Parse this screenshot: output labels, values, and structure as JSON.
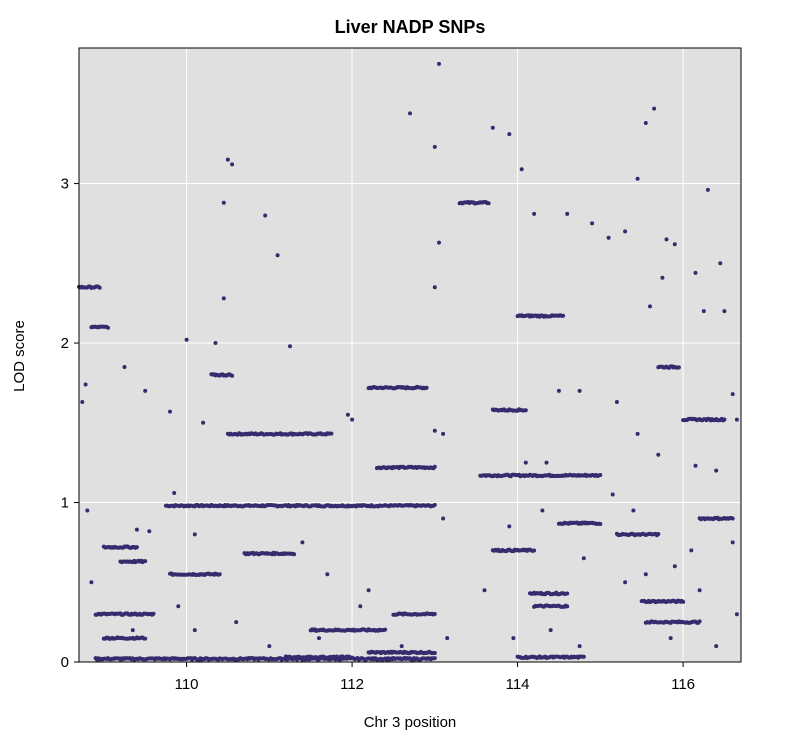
{
  "chart_data": {
    "type": "scatter",
    "title": "Liver NADP SNPs",
    "xlabel": "Chr 3 position",
    "ylabel": "LOD score",
    "xlim": [
      108.7,
      116.7
    ],
    "ylim": [
      0,
      3.85
    ],
    "xticks": [
      110,
      112,
      114,
      116
    ],
    "yticks": [
      0,
      1,
      2,
      3
    ],
    "grid": true,
    "background_color": "#e0e0e0",
    "grid_color": "#ffffff",
    "point_color": "#342c6e",
    "legend": "none",
    "series": [
      {
        "values": {
          "segments": [
            [
              109.75,
              113.0,
              0.98
            ],
            [
              110.5,
              111.75,
              1.43
            ],
            [
              112.2,
              112.9,
              1.72
            ],
            [
              113.55,
              115.0,
              1.17
            ],
            [
              112.3,
              113.0,
              1.22
            ],
            [
              114.15,
              114.6,
              0.43
            ],
            [
              113.3,
              113.65,
              2.88
            ],
            [
              108.7,
              108.95,
              2.35
            ],
            [
              108.85,
              109.05,
              2.1
            ],
            [
              109.8,
              110.4,
              0.55
            ],
            [
              108.9,
              109.6,
              0.3
            ],
            [
              109.0,
              109.5,
              0.15
            ],
            [
              108.9,
              113.0,
              0.02
            ],
            [
              111.2,
              112.0,
              0.03
            ],
            [
              112.2,
              113.0,
              0.06
            ],
            [
              114.5,
              115.0,
              0.87
            ],
            [
              115.2,
              115.7,
              0.8
            ],
            [
              114.0,
              114.55,
              2.17
            ],
            [
              110.3,
              110.55,
              1.8
            ],
            [
              113.7,
              114.1,
              1.58
            ],
            [
              115.7,
              115.95,
              1.85
            ],
            [
              116.0,
              116.5,
              1.52
            ],
            [
              115.55,
              116.2,
              0.25
            ],
            [
              111.5,
              112.4,
              0.2
            ],
            [
              112.5,
              113.0,
              0.3
            ],
            [
              109.2,
              109.5,
              0.63
            ],
            [
              109.0,
              109.4,
              0.72
            ],
            [
              110.7,
              111.3,
              0.68
            ],
            [
              113.7,
              114.2,
              0.7
            ],
            [
              114.2,
              114.6,
              0.35
            ],
            [
              115.5,
              116.0,
              0.38
            ],
            [
              116.2,
              116.6,
              0.9
            ],
            [
              114.0,
              114.8,
              0.03
            ]
          ],
          "points": [
            [
              113.05,
              3.75
            ],
            [
              112.7,
              3.44
            ],
            [
              113.0,
              3.23
            ],
            [
              113.7,
              3.35
            ],
            [
              113.9,
              3.31
            ],
            [
              114.05,
              3.09
            ],
            [
              110.5,
              3.15
            ],
            [
              110.55,
              3.12
            ],
            [
              110.45,
              2.88
            ],
            [
              110.95,
              2.8
            ],
            [
              111.1,
              2.55
            ],
            [
              113.05,
              2.63
            ],
            [
              114.2,
              2.81
            ],
            [
              114.6,
              2.81
            ],
            [
              114.9,
              2.75
            ],
            [
              115.1,
              2.66
            ],
            [
              115.3,
              2.7
            ],
            [
              115.45,
              3.03
            ],
            [
              115.55,
              3.38
            ],
            [
              115.65,
              3.47
            ],
            [
              116.3,
              2.96
            ],
            [
              115.8,
              2.65
            ],
            [
              115.9,
              2.62
            ],
            [
              116.15,
              2.44
            ],
            [
              116.45,
              2.5
            ],
            [
              115.6,
              2.23
            ],
            [
              115.75,
              2.41
            ],
            [
              116.25,
              2.2
            ],
            [
              116.5,
              2.2
            ],
            [
              110.45,
              2.28
            ],
            [
              113.0,
              2.35
            ],
            [
              111.25,
              1.98
            ],
            [
              108.78,
              1.74
            ],
            [
              108.74,
              1.63
            ],
            [
              109.25,
              1.85
            ],
            [
              109.5,
              1.7
            ],
            [
              110.0,
              2.02
            ],
            [
              110.35,
              2.0
            ],
            [
              109.8,
              1.57
            ],
            [
              111.95,
              1.55
            ],
            [
              112.0,
              1.52
            ],
            [
              114.5,
              1.7
            ],
            [
              114.75,
              1.7
            ],
            [
              115.2,
              1.63
            ],
            [
              115.45,
              1.43
            ],
            [
              116.65,
              1.52
            ],
            [
              116.6,
              1.68
            ],
            [
              113.0,
              1.45
            ],
            [
              113.1,
              1.43
            ],
            [
              110.2,
              1.5
            ],
            [
              114.1,
              1.25
            ],
            [
              114.35,
              1.25
            ],
            [
              115.7,
              1.3
            ],
            [
              116.15,
              1.23
            ],
            [
              116.4,
              1.2
            ],
            [
              109.4,
              0.83
            ],
            [
              109.55,
              0.82
            ],
            [
              109.85,
              1.06
            ],
            [
              110.1,
              0.8
            ],
            [
              111.4,
              0.75
            ],
            [
              111.7,
              0.55
            ],
            [
              112.2,
              0.45
            ],
            [
              113.1,
              0.9
            ],
            [
              113.9,
              0.85
            ],
            [
              114.3,
              0.95
            ],
            [
              114.8,
              0.65
            ],
            [
              115.15,
              1.05
            ],
            [
              115.4,
              0.95
            ],
            [
              115.9,
              0.6
            ],
            [
              116.2,
              0.45
            ],
            [
              116.6,
              0.75
            ],
            [
              108.8,
              0.95
            ],
            [
              108.85,
              0.5
            ],
            [
              109.35,
              0.2
            ],
            [
              109.9,
              0.35
            ],
            [
              110.1,
              0.2
            ],
            [
              110.6,
              0.25
            ],
            [
              111.0,
              0.1
            ],
            [
              111.6,
              0.15
            ],
            [
              112.1,
              0.35
            ],
            [
              112.6,
              0.1
            ],
            [
              113.15,
              0.15
            ],
            [
              113.6,
              0.45
            ],
            [
              113.95,
              0.15
            ],
            [
              114.4,
              0.2
            ],
            [
              114.75,
              0.1
            ],
            [
              115.3,
              0.5
            ],
            [
              115.55,
              0.55
            ],
            [
              115.85,
              0.15
            ],
            [
              116.1,
              0.7
            ],
            [
              116.4,
              0.1
            ],
            [
              116.65,
              0.3
            ]
          ]
        }
      }
    ]
  }
}
